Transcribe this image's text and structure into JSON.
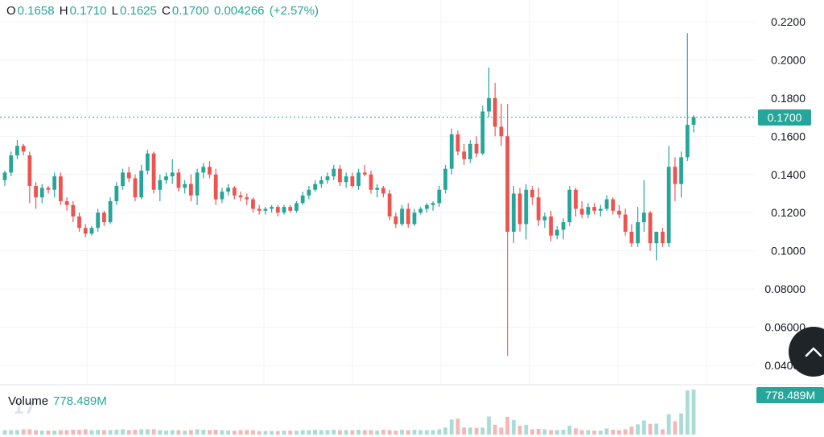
{
  "legend": {
    "o_label": "O",
    "o_value": "0.1658",
    "h_label": "H",
    "h_value": "0.1710",
    "l_label": "L",
    "l_value": "0.1625",
    "c_label": "C",
    "c_value": "0.1700",
    "change": "0.004266",
    "change_pct": "(+2.57%)"
  },
  "volume_legend": {
    "label": "Volume",
    "value": "778.489M"
  },
  "price_tag": "0.1700",
  "volume_tag": "778.489M",
  "logo_text": "17",
  "colors": {
    "up": "#26a69a",
    "down": "#ef5350",
    "up_vol": "#a9dcd6",
    "down_vol": "#f5b7b5",
    "grid": "#f0f3fa",
    "axis_text": "#131722"
  },
  "icons": {
    "scroll_button": "chevron-up-icon"
  },
  "chart_data": {
    "type": "candlestick",
    "y_ticks": [
      "0.2200",
      "0.2000",
      "0.1800",
      "0.1600",
      "0.1400",
      "0.1200",
      "0.1000",
      "0.08000",
      "0.06000",
      "0.04000"
    ],
    "ylim": [
      0.034,
      0.228
    ],
    "last_price": 0.17,
    "grid": true,
    "candles": [
      [
        0.137,
        0.142,
        0.134,
        0.141
      ],
      [
        0.141,
        0.152,
        0.139,
        0.15
      ],
      [
        0.15,
        0.158,
        0.148,
        0.155
      ],
      [
        0.155,
        0.156,
        0.15,
        0.152
      ],
      [
        0.15,
        0.152,
        0.125,
        0.134
      ],
      [
        0.134,
        0.136,
        0.122,
        0.128
      ],
      [
        0.128,
        0.135,
        0.125,
        0.133
      ],
      [
        0.133,
        0.134,
        0.13,
        0.132
      ],
      [
        0.132,
        0.141,
        0.128,
        0.139
      ],
      [
        0.139,
        0.141,
        0.124,
        0.126
      ],
      [
        0.126,
        0.128,
        0.121,
        0.124
      ],
      [
        0.124,
        0.126,
        0.115,
        0.118
      ],
      [
        0.118,
        0.12,
        0.11,
        0.112
      ],
      [
        0.112,
        0.114,
        0.107,
        0.109
      ],
      [
        0.109,
        0.113,
        0.108,
        0.112
      ],
      [
        0.112,
        0.122,
        0.11,
        0.12
      ],
      [
        0.12,
        0.121,
        0.113,
        0.115
      ],
      [
        0.115,
        0.128,
        0.114,
        0.126
      ],
      [
        0.126,
        0.136,
        0.124,
        0.134
      ],
      [
        0.134,
        0.143,
        0.132,
        0.141
      ],
      [
        0.141,
        0.144,
        0.136,
        0.138
      ],
      [
        0.138,
        0.14,
        0.126,
        0.128
      ],
      [
        0.128,
        0.145,
        0.127,
        0.142
      ],
      [
        0.142,
        0.153,
        0.14,
        0.151
      ],
      [
        0.151,
        0.152,
        0.13,
        0.132
      ],
      [
        0.132,
        0.14,
        0.126,
        0.137
      ],
      [
        0.137,
        0.141,
        0.135,
        0.139
      ],
      [
        0.139,
        0.148,
        0.135,
        0.141
      ],
      [
        0.141,
        0.143,
        0.131,
        0.133
      ],
      [
        0.133,
        0.137,
        0.13,
        0.135
      ],
      [
        0.135,
        0.14,
        0.126,
        0.129
      ],
      [
        0.129,
        0.143,
        0.124,
        0.141
      ],
      [
        0.141,
        0.146,
        0.138,
        0.144
      ],
      [
        0.144,
        0.147,
        0.138,
        0.14
      ],
      [
        0.14,
        0.143,
        0.124,
        0.127
      ],
      [
        0.127,
        0.133,
        0.125,
        0.131
      ],
      [
        0.131,
        0.135,
        0.129,
        0.133
      ],
      [
        0.133,
        0.134,
        0.127,
        0.129
      ],
      [
        0.129,
        0.131,
        0.126,
        0.128
      ],
      [
        0.128,
        0.13,
        0.124,
        0.127
      ],
      [
        0.127,
        0.128,
        0.12,
        0.122
      ],
      [
        0.122,
        0.124,
        0.119,
        0.121
      ],
      [
        0.121,
        0.123,
        0.119,
        0.122
      ],
      [
        0.122,
        0.124,
        0.12,
        0.123
      ],
      [
        0.123,
        0.124,
        0.118,
        0.12
      ],
      [
        0.12,
        0.124,
        0.119,
        0.123
      ],
      [
        0.123,
        0.124,
        0.12,
        0.121
      ],
      [
        0.121,
        0.126,
        0.12,
        0.125
      ],
      [
        0.125,
        0.131,
        0.124,
        0.129
      ],
      [
        0.129,
        0.134,
        0.127,
        0.132
      ],
      [
        0.132,
        0.137,
        0.131,
        0.135
      ],
      [
        0.135,
        0.139,
        0.133,
        0.137
      ],
      [
        0.137,
        0.141,
        0.135,
        0.139
      ],
      [
        0.139,
        0.145,
        0.137,
        0.143
      ],
      [
        0.143,
        0.145,
        0.134,
        0.136
      ],
      [
        0.136,
        0.141,
        0.133,
        0.139
      ],
      [
        0.139,
        0.141,
        0.133,
        0.134
      ],
      [
        0.134,
        0.143,
        0.132,
        0.141
      ],
      [
        0.141,
        0.145,
        0.139,
        0.14
      ],
      [
        0.14,
        0.142,
        0.13,
        0.132
      ],
      [
        0.132,
        0.135,
        0.128,
        0.133
      ],
      [
        0.133,
        0.134,
        0.128,
        0.13
      ],
      [
        0.13,
        0.132,
        0.116,
        0.118
      ],
      [
        0.118,
        0.12,
        0.112,
        0.114
      ],
      [
        0.114,
        0.124,
        0.113,
        0.122
      ],
      [
        0.122,
        0.125,
        0.112,
        0.114
      ],
      [
        0.114,
        0.122,
        0.113,
        0.12
      ],
      [
        0.12,
        0.123,
        0.119,
        0.122
      ],
      [
        0.122,
        0.125,
        0.12,
        0.124
      ],
      [
        0.124,
        0.126,
        0.121,
        0.125
      ],
      [
        0.125,
        0.134,
        0.123,
        0.132
      ],
      [
        0.132,
        0.145,
        0.13,
        0.143
      ],
      [
        0.143,
        0.164,
        0.14,
        0.161
      ],
      [
        0.161,
        0.163,
        0.15,
        0.152
      ],
      [
        0.152,
        0.156,
        0.145,
        0.148
      ],
      [
        0.148,
        0.158,
        0.146,
        0.156
      ],
      [
        0.156,
        0.16,
        0.149,
        0.151
      ],
      [
        0.151,
        0.176,
        0.15,
        0.173
      ],
      [
        0.173,
        0.196,
        0.17,
        0.18
      ],
      [
        0.18,
        0.188,
        0.16,
        0.165
      ],
      [
        0.165,
        0.177,
        0.155,
        0.16
      ],
      [
        0.16,
        0.177,
        0.045,
        0.11
      ],
      [
        0.11,
        0.134,
        0.104,
        0.13
      ],
      [
        0.13,
        0.133,
        0.11,
        0.114
      ],
      [
        0.114,
        0.135,
        0.106,
        0.132
      ],
      [
        0.132,
        0.134,
        0.124,
        0.128
      ],
      [
        0.128,
        0.133,
        0.113,
        0.116
      ],
      [
        0.116,
        0.12,
        0.112,
        0.118
      ],
      [
        0.118,
        0.121,
        0.105,
        0.108
      ],
      [
        0.108,
        0.113,
        0.106,
        0.111
      ],
      [
        0.111,
        0.117,
        0.106,
        0.115
      ],
      [
        0.115,
        0.134,
        0.113,
        0.132
      ],
      [
        0.132,
        0.133,
        0.118,
        0.122
      ],
      [
        0.122,
        0.126,
        0.117,
        0.119
      ],
      [
        0.119,
        0.125,
        0.117,
        0.123
      ],
      [
        0.123,
        0.125,
        0.119,
        0.121
      ],
      [
        0.121,
        0.124,
        0.118,
        0.122
      ],
      [
        0.122,
        0.129,
        0.121,
        0.127
      ],
      [
        0.127,
        0.128,
        0.119,
        0.121
      ],
      [
        0.121,
        0.124,
        0.117,
        0.119
      ],
      [
        0.119,
        0.122,
        0.108,
        0.11
      ],
      [
        0.11,
        0.114,
        0.102,
        0.104
      ],
      [
        0.104,
        0.123,
        0.102,
        0.115
      ],
      [
        0.115,
        0.137,
        0.11,
        0.12
      ],
      [
        0.12,
        0.121,
        0.1,
        0.104
      ],
      [
        0.104,
        0.11,
        0.095,
        0.11
      ],
      [
        0.11,
        0.112,
        0.102,
        0.104
      ],
      [
        0.104,
        0.155,
        0.102,
        0.144
      ],
      [
        0.144,
        0.149,
        0.126,
        0.135
      ],
      [
        0.135,
        0.152,
        0.128,
        0.149
      ],
      [
        0.149,
        0.214,
        0.147,
        0.166
      ],
      [
        0.166,
        0.171,
        0.162,
        0.17
      ]
    ],
    "volumes": [
      1.0,
      1.0,
      1.0,
      1.2,
      1.2,
      1.0,
      0.9,
      0.9,
      0.9,
      1.0,
      1.0,
      1.1,
      1.1,
      1.2,
      1.0,
      1.1,
      1.0,
      1.0,
      1.1,
      1.2,
      1.0,
      1.1,
      1.2,
      1.2,
      1.2,
      1.0,
      0.9,
      1.0,
      1.0,
      0.9,
      1.0,
      1.2,
      1.1,
      1.0,
      1.1,
      1.0,
      0.9,
      0.9,
      1.0,
      1.0,
      1.0,
      0.8,
      0.8,
      0.8,
      0.8,
      0.9,
      0.9,
      0.9,
      1.0,
      1.0,
      1.1,
      1.0,
      1.0,
      1.1,
      1.0,
      1.0,
      1.0,
      1.1,
      1.0,
      1.0,
      0.9,
      1.1,
      1.0,
      0.9,
      1.1,
      1.0,
      1.1,
      1.0,
      1.0,
      1.0,
      1.2,
      1.6,
      3.4,
      3.6,
      1.6,
      1.6,
      1.5,
      1.6,
      4.1,
      2.2,
      1.6,
      4.0,
      3.3,
      2.0,
      2.2,
      1.2,
      1.3,
      1.2,
      1.0,
      1.0,
      1.1,
      2.0,
      1.4,
      1.0,
      1.0,
      0.9,
      0.9,
      1.4,
      1.1,
      1.0,
      1.2,
      1.8,
      2.3,
      3.2,
      2.4,
      2.5,
      1.2,
      4.6,
      3.0,
      4.8,
      10.0,
      10.2
    ]
  }
}
